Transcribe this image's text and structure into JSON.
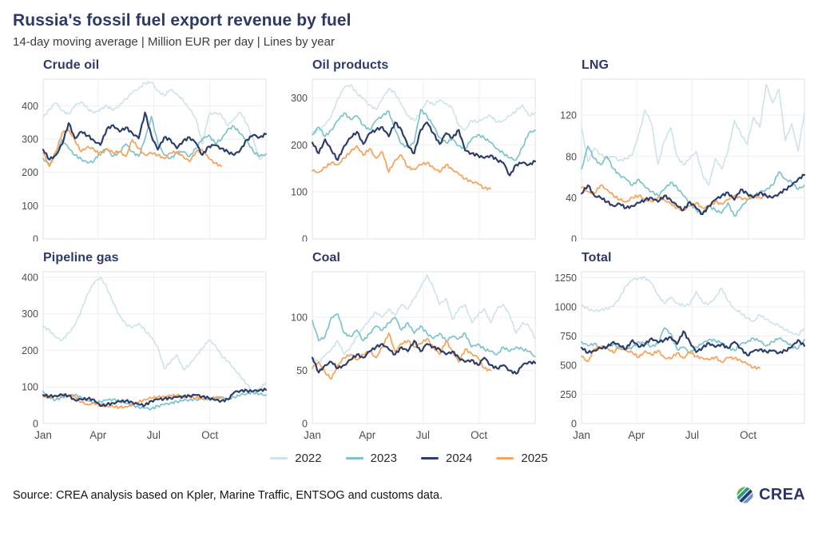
{
  "header": {
    "title": "Russia's fossil fuel export revenue by fuel",
    "subtitle": "14-day moving average | Million EUR per day | Lines by year"
  },
  "colors": {
    "y2022": "#cde3e9",
    "y2023": "#7ec3cc",
    "y2024": "#2d3e6b",
    "y2025": "#f6a55e",
    "title_navy": "#2d3a66",
    "grid": "#efefef",
    "plot_border": "#e3e3e3",
    "tick_text": "#4d4d4d"
  },
  "legend": {
    "items": [
      {
        "label": "2022",
        "color": "#cde3e9"
      },
      {
        "label": "2023",
        "color": "#7ec3cc"
      },
      {
        "label": "2024",
        "color": "#2d3e6b"
      },
      {
        "label": "2025",
        "color": "#f6a55e"
      }
    ]
  },
  "footer": {
    "source": "Source: CREA analysis based on Kpler, Marine Traffic, ENTSOG and customs data.",
    "logo_text": "CREA"
  },
  "chart_data": [
    {
      "type": "line",
      "title": "Crude oil",
      "ylim": [
        0,
        480
      ],
      "yticks": [
        0,
        100,
        200,
        300,
        400
      ],
      "xticks": [
        "Jan",
        "Apr",
        "Jul",
        "Oct"
      ],
      "show_x_labels": false,
      "series": [
        {
          "name": "2022",
          "color": "#cde3e9",
          "values": [
            365,
            390,
            410,
            385,
            375,
            400,
            412,
            392,
            378,
            390,
            400,
            386,
            402,
            420,
            440,
            452,
            468,
            470,
            445,
            430,
            448,
            435,
            415,
            390,
            362,
            285,
            372,
            380,
            372,
            340,
            362,
            380,
            345,
            300,
            238,
            258
          ]
        },
        {
          "name": "2023",
          "color": "#7ec3cc",
          "values": [
            242,
            222,
            258,
            298,
            272,
            252,
            240,
            228,
            235,
            262,
            270,
            248,
            262,
            285,
            262,
            248,
            300,
            368,
            288,
            252,
            242,
            258,
            262,
            248,
            272,
            300,
            312,
            288,
            298,
            330,
            338,
            315,
            295,
            262,
            248,
            255
          ]
        },
        {
          "name": "2024",
          "color": "#2d3e6b",
          "values": [
            268,
            238,
            252,
            285,
            348,
            302,
            322,
            310,
            295,
            282,
            330,
            342,
            322,
            335,
            318,
            302,
            380,
            310,
            268,
            305,
            298,
            272,
            295,
            305,
            288,
            252,
            278,
            282,
            272,
            262,
            252,
            268,
            298,
            312,
            305,
            315
          ]
        },
        {
          "name": "2025",
          "color": "#f6a55e",
          "values": [
            258,
            218,
            262,
            318,
            328,
            295,
            262,
            278,
            268,
            252,
            272,
            258,
            262,
            248,
            298,
            272,
            252,
            258,
            252,
            242,
            258,
            262,
            248,
            232,
            262,
            268,
            242,
            228,
            218
          ]
        }
      ]
    },
    {
      "type": "line",
      "title": "Oil products",
      "ylim": [
        0,
        340
      ],
      "yticks": [
        0,
        100,
        200,
        300
      ],
      "xticks": [
        "Jan",
        "Apr",
        "Jul",
        "Oct"
      ],
      "show_x_labels": false,
      "series": [
        {
          "name": "2022",
          "color": "#cde3e9",
          "values": [
            225,
            232,
            242,
            262,
            298,
            322,
            328,
            310,
            298,
            285,
            275,
            298,
            320,
            310,
            285,
            262,
            252,
            268,
            295,
            285,
            295,
            288,
            278,
            240,
            232,
            252,
            248,
            258,
            262,
            248,
            252,
            262,
            272,
            285,
            262,
            268
          ]
        },
        {
          "name": "2023",
          "color": "#7ec3cc",
          "values": [
            222,
            238,
            218,
            232,
            252,
            268,
            255,
            262,
            242,
            232,
            252,
            262,
            272,
            232,
            202,
            195,
            205,
            275,
            262,
            240,
            215,
            205,
            212,
            198,
            192,
            212,
            222,
            215,
            205,
            192,
            182,
            172,
            168,
            195,
            225,
            232
          ]
        },
        {
          "name": "2024",
          "color": "#2d3e6b",
          "values": [
            205,
            182,
            212,
            188,
            168,
            198,
            215,
            228,
            202,
            225,
            232,
            238,
            218,
            248,
            232,
            198,
            182,
            232,
            248,
            225,
            202,
            225,
            215,
            232,
            188,
            182,
            178,
            172,
            178,
            168,
            162,
            135,
            158,
            162,
            158,
            165
          ]
        },
        {
          "name": "2025",
          "color": "#f6a55e",
          "values": [
            145,
            142,
            152,
            162,
            158,
            172,
            185,
            198,
            178,
            192,
            172,
            185,
            142,
            168,
            178,
            152,
            148,
            158,
            162,
            152,
            142,
            158,
            148,
            138,
            128,
            122,
            118,
            108,
            107
          ]
        }
      ]
    },
    {
      "type": "line",
      "title": "LNG",
      "ylim": [
        0,
        155
      ],
      "yticks": [
        0,
        40,
        80,
        120
      ],
      "xticks": [
        "Jan",
        "Apr",
        "Jul",
        "Oct"
      ],
      "show_x_labels": false,
      "series": [
        {
          "name": "2022",
          "color": "#cde3e9",
          "values": [
            108,
            75,
            88,
            82,
            78,
            80,
            76,
            78,
            82,
            102,
            125,
            112,
            72,
            95,
            108,
            80,
            72,
            78,
            85,
            62,
            52,
            78,
            68,
            85,
            115,
            102,
            92,
            118,
            108,
            150,
            132,
            145,
            95,
            112,
            85,
            122
          ]
        },
        {
          "name": "2023",
          "color": "#7ec3cc",
          "values": [
            68,
            90,
            78,
            72,
            80,
            68,
            62,
            58,
            52,
            58,
            50,
            46,
            42,
            48,
            55,
            50,
            42,
            35,
            28,
            25,
            32,
            28,
            25,
            35,
            22,
            30,
            38,
            42,
            45,
            48,
            52,
            65,
            58,
            55,
            48,
            52
          ]
        },
        {
          "name": "2024",
          "color": "#2d3e6b",
          "values": [
            44,
            52,
            42,
            40,
            36,
            32,
            34,
            30,
            32,
            35,
            38,
            40,
            36,
            42,
            38,
            32,
            28,
            36,
            30,
            24,
            32,
            38,
            42,
            45,
            38,
            48,
            44,
            40,
            45,
            42,
            40,
            44,
            48,
            52,
            58,
            62
          ]
        },
        {
          "name": "2025",
          "color": "#f6a55e",
          "values": [
            50,
            46,
            44,
            52,
            48,
            42,
            38,
            36,
            40,
            42,
            38,
            36,
            40,
            38,
            34,
            30,
            28,
            32,
            35,
            30,
            32,
            36,
            34,
            38,
            42,
            40,
            38,
            42,
            40,
            42
          ]
        }
      ]
    },
    {
      "type": "line",
      "title": "Pipeline gas",
      "ylim": [
        0,
        415
      ],
      "yticks": [
        0,
        100,
        200,
        300,
        400
      ],
      "xticks": [
        "Jan",
        "Apr",
        "Jul",
        "Oct"
      ],
      "show_x_labels": true,
      "series": [
        {
          "name": "2022",
          "color": "#cde3e9",
          "values": [
            265,
            255,
            235,
            228,
            248,
            268,
            310,
            355,
            385,
            400,
            372,
            330,
            295,
            272,
            262,
            274,
            255,
            235,
            210,
            150,
            168,
            188,
            148,
            160,
            185,
            205,
            228,
            215,
            185,
            170,
            150,
            128,
            108,
            82,
            95,
            113
          ]
        },
        {
          "name": "2023",
          "color": "#7ec3cc",
          "values": [
            88,
            70,
            65,
            72,
            76,
            78,
            72,
            62,
            58,
            60,
            64,
            66,
            62,
            55,
            50,
            45,
            42,
            40,
            48,
            52,
            56,
            60,
            63,
            65,
            66,
            68,
            68,
            70,
            70,
            68,
            72,
            78,
            82,
            85,
            80,
            78
          ]
        },
        {
          "name": "2024",
          "color": "#2d3e6b",
          "values": [
            78,
            74,
            76,
            78,
            76,
            64,
            66,
            68,
            65,
            48,
            52,
            56,
            60,
            62,
            58,
            52,
            50,
            62,
            66,
            68,
            70,
            72,
            74,
            76,
            78,
            74,
            70,
            64,
            62,
            66,
            85,
            90,
            90,
            88,
            92,
            92
          ]
        },
        {
          "name": "2025",
          "color": "#f6a55e",
          "values": [
            73,
            71,
            74,
            77,
            78,
            74,
            58,
            52,
            55,
            50,
            48,
            46,
            44,
            46,
            52,
            58,
            66,
            70,
            72,
            74,
            76,
            77,
            74,
            72,
            70,
            68,
            66,
            70,
            72
          ]
        }
      ]
    },
    {
      "type": "line",
      "title": "Coal",
      "ylim": [
        0,
        143
      ],
      "yticks": [
        0,
        50,
        100
      ],
      "xticks": [
        "Jan",
        "Apr",
        "Jul",
        "Oct"
      ],
      "show_x_labels": true,
      "series": [
        {
          "name": "2022",
          "color": "#cde3e9",
          "values": [
            62,
            58,
            64,
            70,
            78,
            65,
            72,
            82,
            90,
            98,
            105,
            100,
            108,
            102,
            112,
            108,
            118,
            128,
            140,
            128,
            112,
            118,
            98,
            108,
            112,
            95,
            102,
            108,
            95,
            108,
            112,
            102,
            85,
            95,
            92,
            80
          ]
        },
        {
          "name": "2023",
          "color": "#7ec3cc",
          "values": [
            97,
            78,
            82,
            100,
            103,
            85,
            82,
            88,
            78,
            85,
            92,
            88,
            95,
            100,
            88,
            95,
            85,
            92,
            85,
            80,
            85,
            78,
            82,
            80,
            85,
            72,
            75,
            70,
            68,
            65,
            72,
            68,
            72,
            70,
            68,
            63
          ]
        },
        {
          "name": "2024",
          "color": "#2d3e6b",
          "values": [
            62,
            48,
            55,
            58,
            52,
            55,
            60,
            65,
            62,
            68,
            72,
            75,
            70,
            65,
            72,
            68,
            78,
            68,
            75,
            72,
            70,
            65,
            68,
            62,
            58,
            60,
            55,
            62,
            55,
            52,
            55,
            50,
            47,
            55,
            58,
            57
          ]
        },
        {
          "name": "2025",
          "color": "#f6a55e",
          "values": [
            52,
            58,
            48,
            42,
            55,
            62,
            65,
            60,
            65,
            68,
            62,
            72,
            85,
            68,
            75,
            78,
            72,
            75,
            80,
            72,
            65,
            78,
            68,
            58,
            70,
            66,
            62,
            52,
            50
          ]
        }
      ]
    },
    {
      "type": "line",
      "title": "Total",
      "ylim": [
        0,
        1300
      ],
      "yticks": [
        0,
        250,
        500,
        750,
        1000,
        1250
      ],
      "xticks": [
        "Jan",
        "Apr",
        "Jul",
        "Oct"
      ],
      "show_x_labels": true,
      "series": [
        {
          "name": "2022",
          "color": "#cde3e9",
          "values": [
            1010,
            985,
            960,
            975,
            985,
            1005,
            1080,
            1180,
            1230,
            1245,
            1250,
            1200,
            1100,
            1030,
            1080,
            1030,
            1010,
            1020,
            1130,
            1040,
            1020,
            1080,
            1160,
            1050,
            980,
            950,
            900,
            875,
            930,
            890,
            860,
            840,
            800,
            780,
            755,
            820
          ]
        },
        {
          "name": "2023",
          "color": "#7ec3cc",
          "values": [
            700,
            665,
            685,
            645,
            655,
            680,
            645,
            635,
            655,
            700,
            685,
            660,
            685,
            820,
            770,
            635,
            655,
            605,
            655,
            685,
            720,
            710,
            690,
            650,
            625,
            680,
            700,
            730,
            705,
            665,
            700,
            730,
            705,
            660,
            640,
            720
          ]
        },
        {
          "name": "2024",
          "color": "#2d3e6b",
          "values": [
            650,
            605,
            625,
            645,
            655,
            700,
            665,
            640,
            715,
            655,
            680,
            730,
            695,
            715,
            740,
            680,
            790,
            700,
            610,
            650,
            690,
            655,
            680,
            645,
            700,
            645,
            585,
            620,
            635,
            615,
            625,
            605,
            625,
            655,
            715,
            665
          ]
        },
        {
          "name": "2025",
          "color": "#f6a55e",
          "values": [
            575,
            530,
            640,
            655,
            648,
            605,
            660,
            625,
            605,
            565,
            622,
            585,
            625,
            565,
            555,
            605,
            560,
            615,
            572,
            562,
            545,
            570,
            525,
            565,
            560,
            540,
            510,
            480,
            475
          ]
        }
      ]
    }
  ]
}
